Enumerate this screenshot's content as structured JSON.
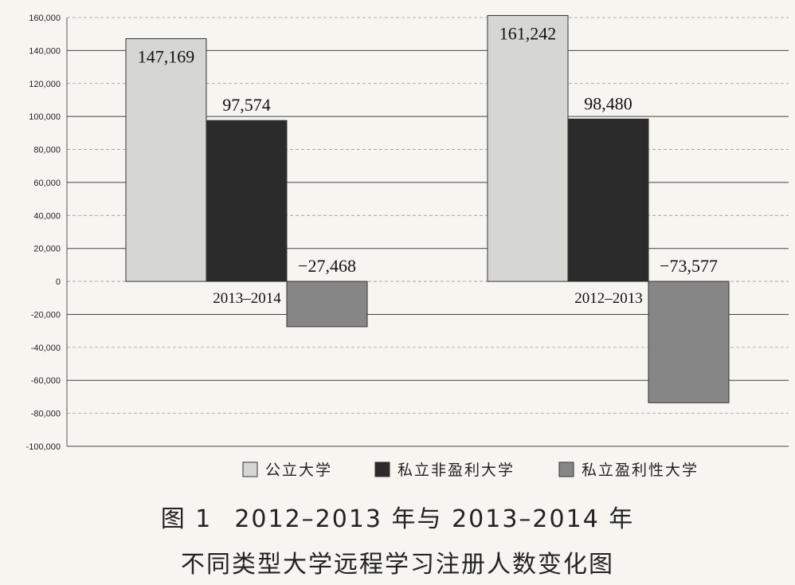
{
  "chart_data": {
    "type": "bar",
    "groups": [
      {
        "label": "2013–2014",
        "values": [
          147169,
          97574,
          -27468
        ],
        "labels": [
          "147,169",
          "97,574",
          "−27,468"
        ]
      },
      {
        "label": "2012–2013",
        "values": [
          161242,
          98480,
          -73577
        ],
        "labels": [
          "161,242",
          "98,480",
          "−73,577"
        ]
      }
    ],
    "series": [
      {
        "name": "公立大学",
        "color": "#d6d6d2"
      },
      {
        "name": "私立非盈利大学",
        "color": "#2b2b2b"
      },
      {
        "name": "私立盈利性大学",
        "color": "#868686"
      }
    ],
    "ylim": [
      -100000,
      160000
    ],
    "yticks": [
      "160,000",
      "140,000",
      "120,000",
      "100,000",
      "80,000",
      "60,000",
      "40,000",
      "20,000",
      "0",
      "-20,000",
      "-40,000",
      "-60,000",
      "-80,000",
      "-100,000"
    ],
    "ytick_values": [
      160000,
      140000,
      120000,
      100000,
      80000,
      60000,
      40000,
      20000,
      0,
      -20000,
      -40000,
      -60000,
      -80000,
      -100000
    ],
    "grid": true,
    "legend_position": "bottom"
  },
  "caption": {
    "figure_label": "图 1",
    "line1": "2012–2013 年与 2013–2014 年",
    "line2": "不同类型大学远程学习注册人数变化图"
  }
}
